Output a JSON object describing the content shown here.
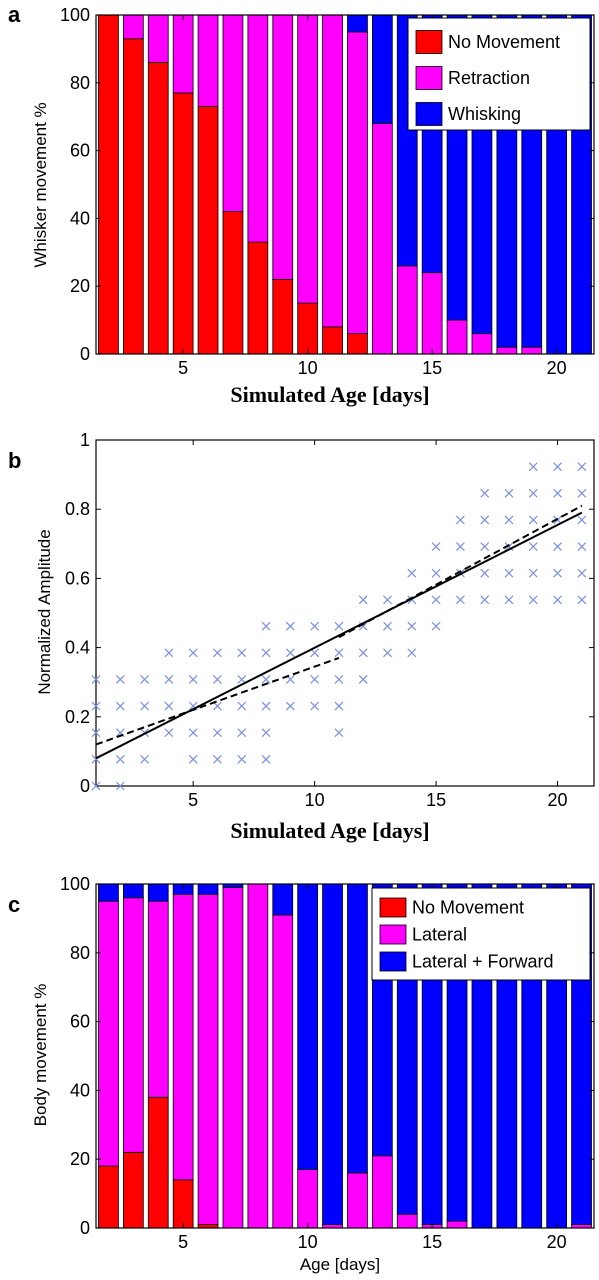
{
  "colors": {
    "red": "#ff0000",
    "magenta": "#ff00ff",
    "blue": "#0000ff",
    "scatter": "#7b8fe6",
    "line": "#000000"
  },
  "chart_data": [
    {
      "panel": "a",
      "type": "bar",
      "stacked": true,
      "xlabel": "Simulated Age [days]",
      "ylabel": "Whisker movement %",
      "xlim": [
        1.5,
        21.5
      ],
      "ylim": [
        0,
        100
      ],
      "xticks": [
        5,
        10,
        15,
        20
      ],
      "yticks": [
        0,
        20,
        40,
        60,
        80,
        100
      ],
      "legend_position": "top-right",
      "categories": [
        2,
        3,
        4,
        5,
        6,
        7,
        8,
        9,
        10,
        11,
        12,
        13,
        14,
        15,
        16,
        17,
        18,
        19,
        20,
        21
      ],
      "series": [
        {
          "name": "No Movement",
          "color": "red",
          "values": [
            100,
            93,
            86,
            77,
            73,
            42,
            33,
            22,
            15,
            8,
            6,
            0,
            0,
            0,
            0,
            0,
            0,
            0,
            0,
            0
          ]
        },
        {
          "name": "Retraction",
          "color": "magenta",
          "values": [
            0,
            7,
            14,
            23,
            27,
            58,
            67,
            78,
            85,
            92,
            89,
            68,
            26,
            24,
            10,
            6,
            2,
            2,
            0,
            0
          ]
        },
        {
          "name": "Whisking",
          "color": "blue",
          "values": [
            0,
            0,
            0,
            0,
            0,
            0,
            0,
            0,
            0,
            0,
            5,
            32,
            74,
            76,
            90,
            94,
            98,
            98,
            100,
            100
          ]
        }
      ]
    },
    {
      "panel": "b",
      "type": "scatter",
      "xlabel": "Simulated Age [days]",
      "ylabel": "Normalized Amplitude",
      "xlim": [
        1,
        21.5
      ],
      "ylim": [
        0,
        1
      ],
      "xticks": [
        5,
        10,
        15,
        20
      ],
      "yticks": [
        0,
        0.2,
        0.4,
        0.6,
        0.8,
        1
      ],
      "points": [
        [
          1,
          0
        ],
        [
          1,
          0.077
        ],
        [
          1,
          0.154
        ],
        [
          1,
          0.231
        ],
        [
          1,
          0.308
        ],
        [
          2,
          0
        ],
        [
          2,
          0.077
        ],
        [
          2,
          0.154
        ],
        [
          2,
          0.231
        ],
        [
          2,
          0.308
        ],
        [
          3,
          0.077
        ],
        [
          3,
          0.154
        ],
        [
          3,
          0.231
        ],
        [
          3,
          0.308
        ],
        [
          4,
          0.154
        ],
        [
          4,
          0.231
        ],
        [
          4,
          0.308
        ],
        [
          4,
          0.385
        ],
        [
          5,
          0.077
        ],
        [
          5,
          0.154
        ],
        [
          5,
          0.231
        ],
        [
          5,
          0.308
        ],
        [
          5,
          0.385
        ],
        [
          6,
          0.077
        ],
        [
          6,
          0.154
        ],
        [
          6,
          0.231
        ],
        [
          6,
          0.308
        ],
        [
          6,
          0.385
        ],
        [
          7,
          0.077
        ],
        [
          7,
          0.154
        ],
        [
          7,
          0.231
        ],
        [
          7,
          0.308
        ],
        [
          7,
          0.385
        ],
        [
          8,
          0.077
        ],
        [
          8,
          0.154
        ],
        [
          8,
          0.231
        ],
        [
          8,
          0.308
        ],
        [
          8,
          0.385
        ],
        [
          8,
          0.462
        ],
        [
          9,
          0.231
        ],
        [
          9,
          0.308
        ],
        [
          9,
          0.385
        ],
        [
          9,
          0.462
        ],
        [
          10,
          0.231
        ],
        [
          10,
          0.308
        ],
        [
          10,
          0.385
        ],
        [
          10,
          0.462
        ],
        [
          11,
          0.154
        ],
        [
          11,
          0.231
        ],
        [
          11,
          0.308
        ],
        [
          11,
          0.385
        ],
        [
          11,
          0.462
        ],
        [
          12,
          0.308
        ],
        [
          12,
          0.385
        ],
        [
          12,
          0.462
        ],
        [
          12,
          0.538
        ],
        [
          13,
          0.385
        ],
        [
          13,
          0.462
        ],
        [
          13,
          0.538
        ],
        [
          14,
          0.385
        ],
        [
          14,
          0.462
        ],
        [
          14,
          0.538
        ],
        [
          14,
          0.615
        ],
        [
          15,
          0.462
        ],
        [
          15,
          0.538
        ],
        [
          15,
          0.615
        ],
        [
          15,
          0.692
        ],
        [
          16,
          0.538
        ],
        [
          16,
          0.615
        ],
        [
          16,
          0.692
        ],
        [
          16,
          0.769
        ],
        [
          17,
          0.538
        ],
        [
          17,
          0.615
        ],
        [
          17,
          0.692
        ],
        [
          17,
          0.769
        ],
        [
          17,
          0.846
        ],
        [
          18,
          0.538
        ],
        [
          18,
          0.615
        ],
        [
          18,
          0.692
        ],
        [
          18,
          0.769
        ],
        [
          18,
          0.846
        ],
        [
          19,
          0.538
        ],
        [
          19,
          0.615
        ],
        [
          19,
          0.692
        ],
        [
          19,
          0.769
        ],
        [
          19,
          0.846
        ],
        [
          19,
          0.923
        ],
        [
          20,
          0.538
        ],
        [
          20,
          0.615
        ],
        [
          20,
          0.692
        ],
        [
          20,
          0.769
        ],
        [
          20,
          0.846
        ],
        [
          20,
          0.923
        ],
        [
          21,
          0.538
        ],
        [
          21,
          0.615
        ],
        [
          21,
          0.692
        ],
        [
          21,
          0.769
        ],
        [
          21,
          0.846
        ],
        [
          21,
          0.923
        ]
      ],
      "lines": [
        {
          "style": "solid",
          "x": [
            1,
            21
          ],
          "y": [
            0.08,
            0.79
          ]
        },
        {
          "style": "dashed",
          "x": [
            1,
            11
          ],
          "y": [
            0.12,
            0.37
          ]
        },
        {
          "style": "dashed",
          "x": [
            11,
            21
          ],
          "y": [
            0.43,
            0.81
          ]
        }
      ]
    },
    {
      "panel": "c",
      "type": "bar",
      "stacked": true,
      "xlabel": "Age [days]",
      "ylabel": "Body movement %",
      "xlim": [
        1.5,
        21.5
      ],
      "ylim": [
        0,
        100
      ],
      "xticks": [
        5,
        10,
        15,
        20
      ],
      "yticks": [
        0,
        20,
        40,
        60,
        80,
        100
      ],
      "legend_position": "top-right",
      "categories": [
        2,
        3,
        4,
        5,
        6,
        7,
        8,
        9,
        10,
        11,
        12,
        13,
        14,
        15,
        16,
        17,
        18,
        19,
        20,
        21
      ],
      "series": [
        {
          "name": "No Movement",
          "color": "red",
          "values": [
            18,
            22,
            38,
            14,
            1,
            0,
            0,
            0,
            0,
            0,
            0,
            0,
            0,
            0,
            0,
            0,
            0,
            0,
            0,
            0
          ]
        },
        {
          "name": "Lateral",
          "color": "magenta",
          "values": [
            77,
            74,
            57,
            83,
            96,
            99,
            100,
            91,
            17,
            1,
            16,
            21,
            4,
            1,
            2,
            0,
            0,
            0,
            0,
            1
          ]
        },
        {
          "name": "Lateral + Forward",
          "color": "blue",
          "values": [
            5,
            4,
            5,
            3,
            3,
            1,
            0,
            9,
            83,
            99,
            84,
            79,
            96,
            99,
            98,
            100,
            100,
            100,
            100,
            99
          ]
        }
      ]
    }
  ]
}
